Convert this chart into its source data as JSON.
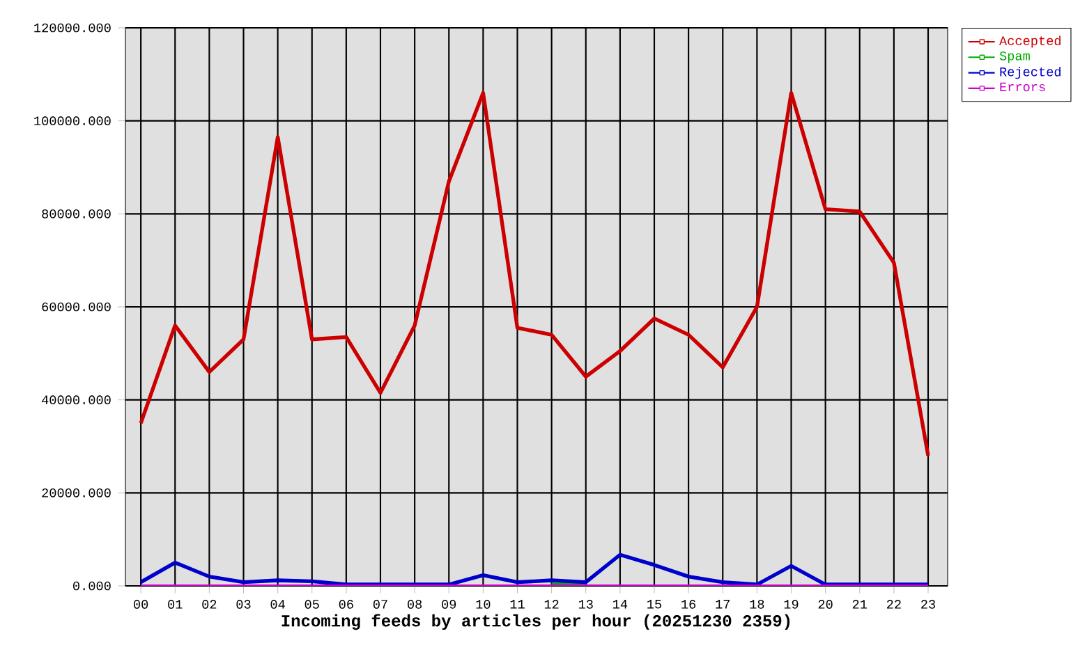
{
  "chart_data": {
    "type": "line",
    "xlabel": "Incoming feeds by articles per hour (20251230 2359)",
    "categories": [
      "00",
      "01",
      "02",
      "03",
      "04",
      "05",
      "06",
      "07",
      "08",
      "09",
      "10",
      "11",
      "12",
      "13",
      "14",
      "15",
      "16",
      "17",
      "18",
      "19",
      "20",
      "21",
      "22",
      "23"
    ],
    "series": [
      {
        "name": "Accepted",
        "color": "#cc0000",
        "values": [
          35000,
          56000,
          46000,
          53000,
          96500,
          53000,
          53500,
          41500,
          56000,
          87000,
          106000,
          55500,
          54000,
          45000,
          50500,
          57500,
          54000,
          47000,
          60000,
          106000,
          81000,
          80500,
          69500,
          28000
        ]
      },
      {
        "name": "Spam",
        "color": "#00aa00",
        "values": [
          null,
          null,
          null,
          null,
          null,
          null,
          null,
          null,
          null,
          null,
          null,
          null,
          400,
          400,
          null,
          null,
          null,
          null,
          null,
          null,
          null,
          null,
          null,
          null
        ]
      },
      {
        "name": "Rejected",
        "color": "#0000cc",
        "values": [
          800,
          5000,
          2000,
          800,
          1200,
          1000,
          300,
          300,
          300,
          300,
          2300,
          800,
          1200,
          800,
          6700,
          4500,
          2000,
          800,
          300,
          4300,
          300,
          300,
          300,
          300
        ]
      },
      {
        "name": "Errors",
        "color": "#cc00cc",
        "values": [
          0,
          0,
          0,
          0,
          0,
          0,
          0,
          0,
          0,
          0,
          0,
          0,
          0,
          0,
          0,
          0,
          0,
          0,
          0,
          0,
          0,
          0,
          0,
          0
        ]
      }
    ],
    "ylim": [
      0,
      120000
    ],
    "yticks": [
      {
        "value": 0,
        "label": "0.000"
      },
      {
        "value": 20000,
        "label": "20000.000"
      },
      {
        "value": 40000,
        "label": "40000.000"
      },
      {
        "value": 60000,
        "label": "60000.000"
      },
      {
        "value": 80000,
        "label": "80000.000"
      },
      {
        "value": 100000,
        "label": "100000.000"
      },
      {
        "value": 120000,
        "label": "120000.000"
      }
    ],
    "grid": true,
    "legend": "top right",
    "marker": "none",
    "line_style": "solid"
  }
}
